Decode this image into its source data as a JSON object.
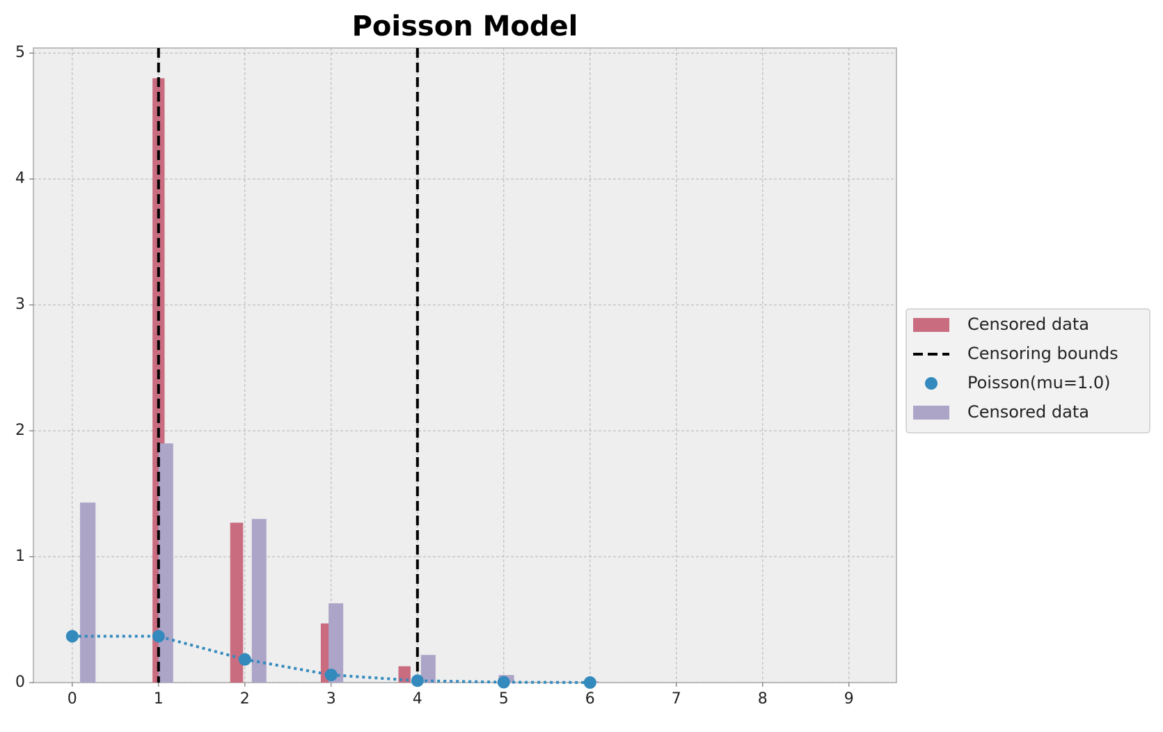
{
  "chart_data": {
    "type": "histogram",
    "title": "Poisson Model",
    "xlim": [
      -0.45,
      9.55
    ],
    "ylim": [
      0,
      5.04
    ],
    "xticks": [
      0,
      1,
      2,
      3,
      4,
      5,
      6,
      7,
      8,
      9
    ],
    "yticks": [
      0,
      1,
      2,
      3,
      4,
      5
    ],
    "grid": true,
    "legend": "outside right",
    "series": [
      {
        "name": "Censored data",
        "kind": "bar",
        "color": "#c96c80",
        "x": [
          [
            0.93,
            1.07
          ],
          [
            1.83,
            1.98
          ],
          [
            2.88,
            3.02
          ],
          [
            3.78,
            3.92
          ]
        ],
        "values": [
          4.8,
          1.27,
          0.47,
          0.13
        ]
      },
      {
        "name": "Censoring bounds",
        "kind": "vline",
        "color": "#000000",
        "x": [
          1,
          4
        ]
      },
      {
        "name": "Poisson(mu=1.0)",
        "kind": "line",
        "color": "#348abd",
        "x": [
          0,
          1,
          2,
          3,
          4,
          5,
          6
        ],
        "values": [
          0.368,
          0.368,
          0.184,
          0.061,
          0.015,
          0.003,
          0.0005
        ]
      },
      {
        "name": "Censored data",
        "kind": "bar",
        "color": "#ada5c8",
        "x": [
          [
            0.09,
            0.27
          ],
          [
            1.0,
            1.17
          ],
          [
            2.08,
            2.25
          ],
          [
            2.97,
            3.14
          ],
          [
            4.04,
            4.21
          ],
          [
            4.94,
            5.12
          ],
          [
            5.92,
            6.1
          ]
        ],
        "values": [
          1.43,
          1.9,
          1.3,
          0.63,
          0.22,
          0.06,
          0.01
        ]
      }
    ]
  }
}
